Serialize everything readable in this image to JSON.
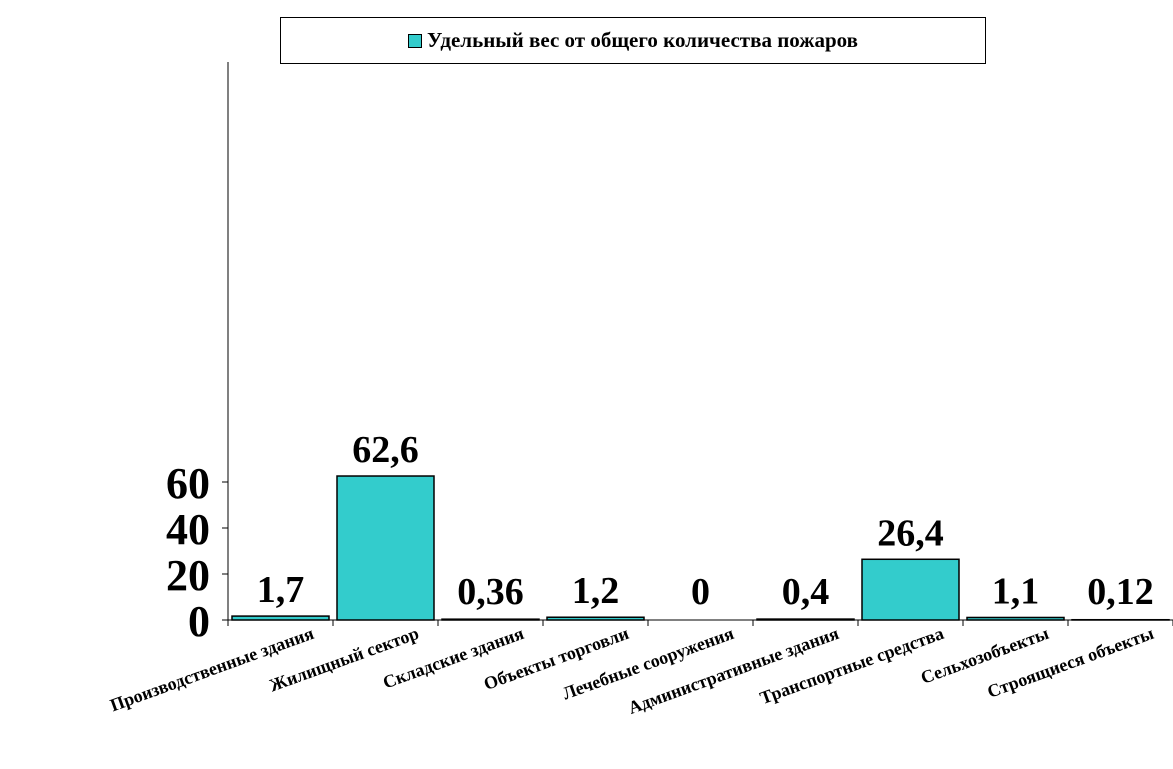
{
  "chart_data": {
    "type": "bar",
    "categories": [
      "Производственные здания",
      "Жилищный сектор",
      "Складские здания",
      "Объекты торговли",
      "Лечебные сооружения",
      "Административные здания",
      "Транспортные средства",
      "Сельхозобъекты",
      "Строящиеся объекты"
    ],
    "series": [
      {
        "name": "Удельный вес от общего количества пожаров",
        "values": [
          1.7,
          62.6,
          0.36,
          1.2,
          0,
          0.4,
          26.4,
          1.1,
          0.12
        ],
        "data_labels": [
          "1,7",
          "62,6",
          "0,36",
          "1,2",
          "0",
          "0,4",
          "26,4",
          "1,1",
          "0,12"
        ],
        "color": "#33CCCC"
      }
    ],
    "yticks": [
      0,
      20,
      40,
      60
    ],
    "ylim": [
      0,
      70
    ],
    "legend_position": "top",
    "grid": false
  }
}
